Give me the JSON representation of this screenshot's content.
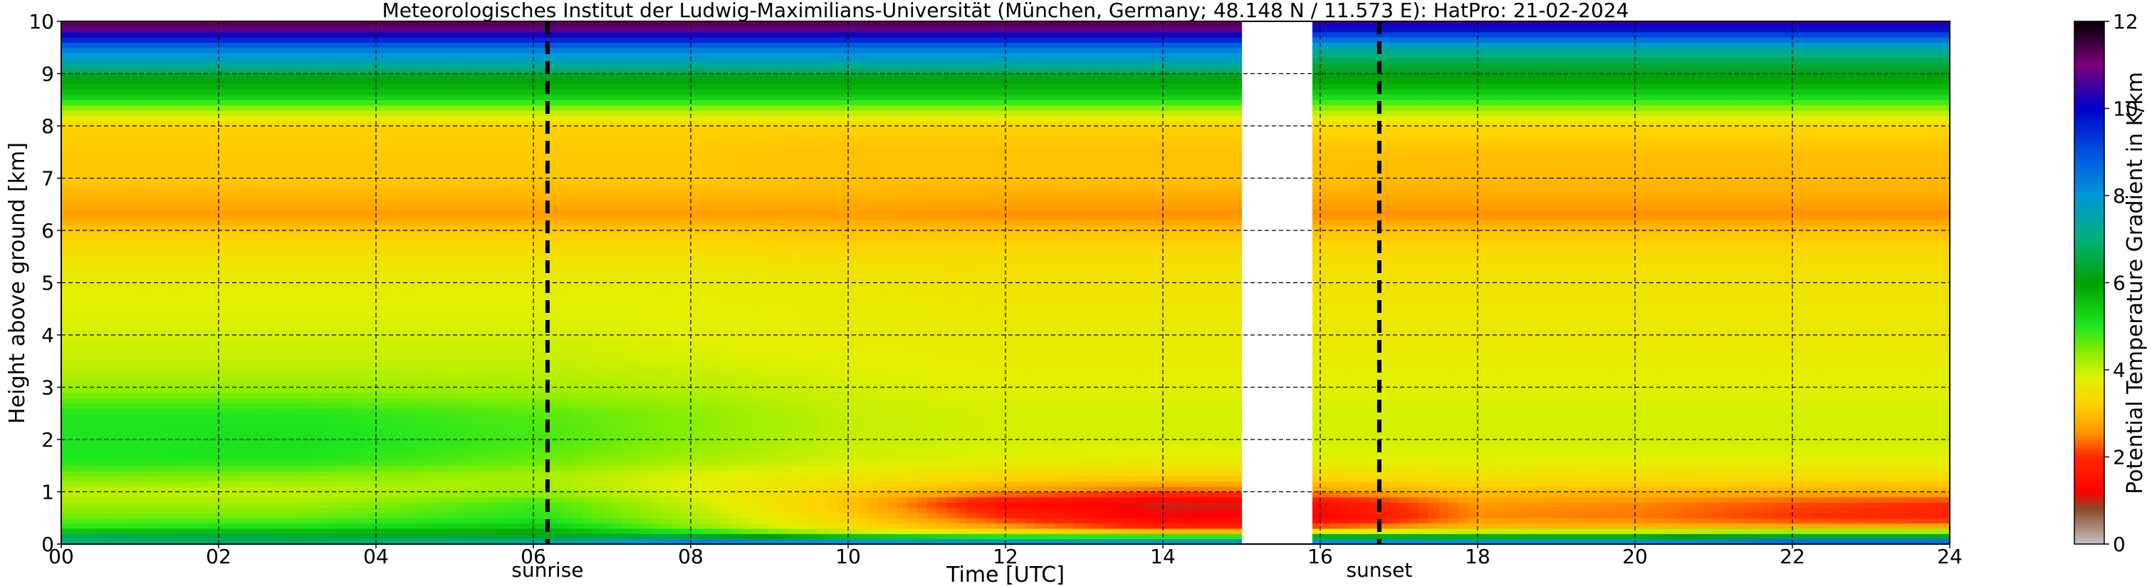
{
  "chart_data": {
    "type": "heatmap",
    "title": "Meteorologisches Institut der Ludwig-Maximilians-Universität (München, Germany; 48.148 N / 11.573 E):    HatPro: 21-02-2024",
    "xlabel": "Time [UTC]",
    "ylabel": "Height above ground [km]",
    "colorbar_label": "Potential Temperature Gradient in K/km",
    "xlim": [
      0,
      24
    ],
    "ylim": [
      0,
      10
    ],
    "clim": [
      0,
      12
    ],
    "x_ticks": [
      0,
      2,
      4,
      6,
      8,
      10,
      12,
      14,
      16,
      18,
      20,
      22,
      24
    ],
    "x_tick_labels": [
      "00",
      "02",
      "04",
      "06",
      "08",
      "10",
      "12",
      "14",
      "16",
      "18",
      "20",
      "22",
      "24"
    ],
    "y_ticks": [
      0,
      1,
      2,
      3,
      4,
      5,
      6,
      7,
      8,
      9,
      10
    ],
    "y_tick_labels": [
      "0",
      "1",
      "2",
      "3",
      "4",
      "5",
      "6",
      "7",
      "8",
      "9",
      "10"
    ],
    "colorbar_ticks": [
      0,
      2,
      4,
      6,
      8,
      10,
      12
    ],
    "colorbar_tick_labels": [
      "0",
      "2",
      "4",
      "6",
      "8",
      "10",
      "12"
    ],
    "grid": true,
    "missing_data": [
      [
        15.05,
        15.9
      ]
    ],
    "annotations": [
      {
        "label": "sunrise",
        "x": 6.18
      },
      {
        "label": "sunset",
        "x": 16.75
      }
    ],
    "profile_heights_km": [
      0,
      0.1,
      0.2,
      0.3,
      0.5,
      0.8,
      1.0,
      1.3,
      1.6,
      2.0,
      2.5,
      3.0,
      3.5,
      4.0,
      4.5,
      5.0,
      5.5,
      6.0,
      6.3,
      6.7,
      7.0,
      7.5,
      8.0,
      8.3,
      8.6,
      8.9,
      9.2,
      9.5,
      9.8,
      10.0
    ],
    "time_profiles": [
      {
        "time": 0,
        "values": [
          6.5,
          7.5,
          6.0,
          5.0,
          4.6,
          4.2,
          4.0,
          4.5,
          5.0,
          5.0,
          5.0,
          4.3,
          4.0,
          3.9,
          3.8,
          3.7,
          3.5,
          3.1,
          2.6,
          2.9,
          3.1,
          3.1,
          3.2,
          4.2,
          5.5,
          6.0,
          7.5,
          8.5,
          10.5,
          11.5
        ]
      },
      {
        "time": 3,
        "values": [
          6.5,
          7.0,
          6.0,
          5.2,
          4.6,
          4.2,
          4.0,
          4.4,
          5.0,
          5.1,
          5.0,
          4.3,
          4.0,
          3.9,
          3.8,
          3.7,
          3.5,
          3.1,
          2.6,
          2.9,
          3.1,
          3.1,
          3.2,
          4.2,
          5.5,
          6.0,
          7.5,
          8.5,
          10.5,
          11.5
        ]
      },
      {
        "time": 6,
        "values": [
          8.0,
          6.8,
          6.0,
          5.6,
          5.0,
          4.8,
          4.3,
          4.2,
          4.6,
          4.8,
          4.7,
          4.2,
          4.0,
          3.9,
          3.8,
          3.7,
          3.5,
          3.1,
          2.6,
          2.9,
          3.1,
          3.1,
          3.2,
          4.2,
          5.5,
          6.0,
          7.5,
          8.5,
          10.5,
          11.5
        ]
      },
      {
        "time": 8,
        "values": [
          9.0,
          7.5,
          5.5,
          4.5,
          4.2,
          4.0,
          3.8,
          3.8,
          4.2,
          4.4,
          4.4,
          4.1,
          3.9,
          3.8,
          3.8,
          3.7,
          3.5,
          3.1,
          2.6,
          2.9,
          3.1,
          3.1,
          3.2,
          4.2,
          5.5,
          6.0,
          7.5,
          8.5,
          10.5,
          11.5
        ]
      },
      {
        "time": 10,
        "values": [
          9.5,
          6.5,
          4.5,
          3.5,
          3.2,
          3.0,
          3.2,
          3.6,
          3.9,
          4.0,
          4.0,
          3.9,
          3.8,
          3.7,
          3.7,
          3.6,
          3.4,
          3.0,
          2.6,
          2.9,
          3.0,
          3.0,
          3.2,
          4.2,
          5.5,
          6.0,
          7.5,
          8.5,
          10.5,
          11.5
        ]
      },
      {
        "time": 12,
        "values": [
          9.5,
          6.0,
          4.0,
          2.8,
          2.0,
          1.4,
          2.6,
          3.3,
          3.8,
          3.9,
          3.9,
          3.8,
          3.7,
          3.7,
          3.6,
          3.5,
          3.4,
          3.0,
          2.5,
          2.8,
          3.0,
          3.0,
          3.2,
          4.2,
          5.5,
          6.0,
          7.5,
          8.5,
          10.5,
          11.5
        ]
      },
      {
        "time": 14,
        "values": [
          9.5,
          6.0,
          3.8,
          2.0,
          1.2,
          1.0,
          2.2,
          3.2,
          3.7,
          3.9,
          3.9,
          3.8,
          3.7,
          3.7,
          3.6,
          3.5,
          3.4,
          3.0,
          2.5,
          2.8,
          3.0,
          3.0,
          3.2,
          4.2,
          5.5,
          6.0,
          7.5,
          8.5,
          10.5,
          11.5
        ]
      },
      {
        "time": 15,
        "values": [
          9.5,
          6.0,
          3.8,
          2.0,
          1.3,
          1.0,
          2.3,
          3.2,
          3.7,
          3.9,
          3.9,
          3.8,
          3.7,
          3.7,
          3.6,
          3.5,
          3.4,
          3.0,
          2.5,
          2.8,
          3.0,
          3.0,
          3.2,
          4.2,
          5.5,
          6.0,
          7.5,
          8.5,
          10.5,
          11.5
        ]
      },
      {
        "time": 16,
        "values": [
          9.5,
          6.5,
          5.0,
          2.5,
          1.2,
          1.5,
          2.6,
          3.3,
          3.8,
          3.9,
          3.9,
          3.8,
          3.7,
          3.6,
          3.6,
          3.5,
          3.4,
          3.0,
          2.5,
          2.8,
          3.0,
          3.0,
          3.3,
          4.2,
          5.3,
          6.0,
          6.5,
          7.5,
          9.5,
          10.5
        ]
      },
      {
        "time": 18,
        "values": [
          9.5,
          6.5,
          5.0,
          3.0,
          2.5,
          2.6,
          3.0,
          3.5,
          3.8,
          3.9,
          3.9,
          3.8,
          3.7,
          3.6,
          3.6,
          3.5,
          3.4,
          3.0,
          2.5,
          2.8,
          2.9,
          3.0,
          3.3,
          4.2,
          5.3,
          6.0,
          6.5,
          7.5,
          9.5,
          10.5
        ]
      },
      {
        "time": 20,
        "values": [
          9.5,
          6.5,
          5.0,
          3.0,
          2.4,
          2.5,
          2.9,
          3.4,
          3.8,
          3.9,
          3.9,
          3.8,
          3.7,
          3.6,
          3.6,
          3.5,
          3.4,
          3.0,
          2.5,
          2.8,
          2.9,
          3.0,
          3.3,
          4.2,
          5.3,
          6.0,
          6.5,
          7.5,
          9.5,
          10.5
        ]
      },
      {
        "time": 22,
        "values": [
          9.5,
          7.5,
          5.5,
          3.0,
          2.0,
          2.2,
          2.8,
          3.4,
          3.8,
          3.9,
          3.9,
          3.8,
          3.7,
          3.6,
          3.6,
          3.5,
          3.4,
          3.0,
          2.5,
          2.8,
          2.9,
          3.0,
          3.3,
          4.2,
          5.3,
          6.0,
          6.5,
          7.5,
          9.5,
          10.5
        ]
      },
      {
        "time": 24,
        "values": [
          9.5,
          7.5,
          5.5,
          3.0,
          1.8,
          2.0,
          2.8,
          3.4,
          3.8,
          3.9,
          3.9,
          3.8,
          3.7,
          3.6,
          3.6,
          3.5,
          3.4,
          3.0,
          2.5,
          2.8,
          2.9,
          3.0,
          3.3,
          4.2,
          5.3,
          6.0,
          6.5,
          7.5,
          9.5,
          10.5
        ]
      }
    ],
    "colorscale": [
      {
        "value": 0.0,
        "color": "#c4c4c4"
      },
      {
        "value": 0.8,
        "color": "#8a4a28"
      },
      {
        "value": 1.2,
        "color": "#ff0000"
      },
      {
        "value": 2.0,
        "color": "#ff2a00"
      },
      {
        "value": 2.6,
        "color": "#ff9d00"
      },
      {
        "value": 3.2,
        "color": "#ffd200"
      },
      {
        "value": 3.8,
        "color": "#e2f000"
      },
      {
        "value": 4.4,
        "color": "#8aee00"
      },
      {
        "value": 5.0,
        "color": "#1ee61e"
      },
      {
        "value": 6.0,
        "color": "#00a000"
      },
      {
        "value": 7.0,
        "color": "#00b07a"
      },
      {
        "value": 8.0,
        "color": "#0096d8"
      },
      {
        "value": 9.0,
        "color": "#0050e0"
      },
      {
        "value": 10.0,
        "color": "#0000c8"
      },
      {
        "value": 11.0,
        "color": "#7a007a"
      },
      {
        "value": 12.0,
        "color": "#000000"
      }
    ]
  }
}
